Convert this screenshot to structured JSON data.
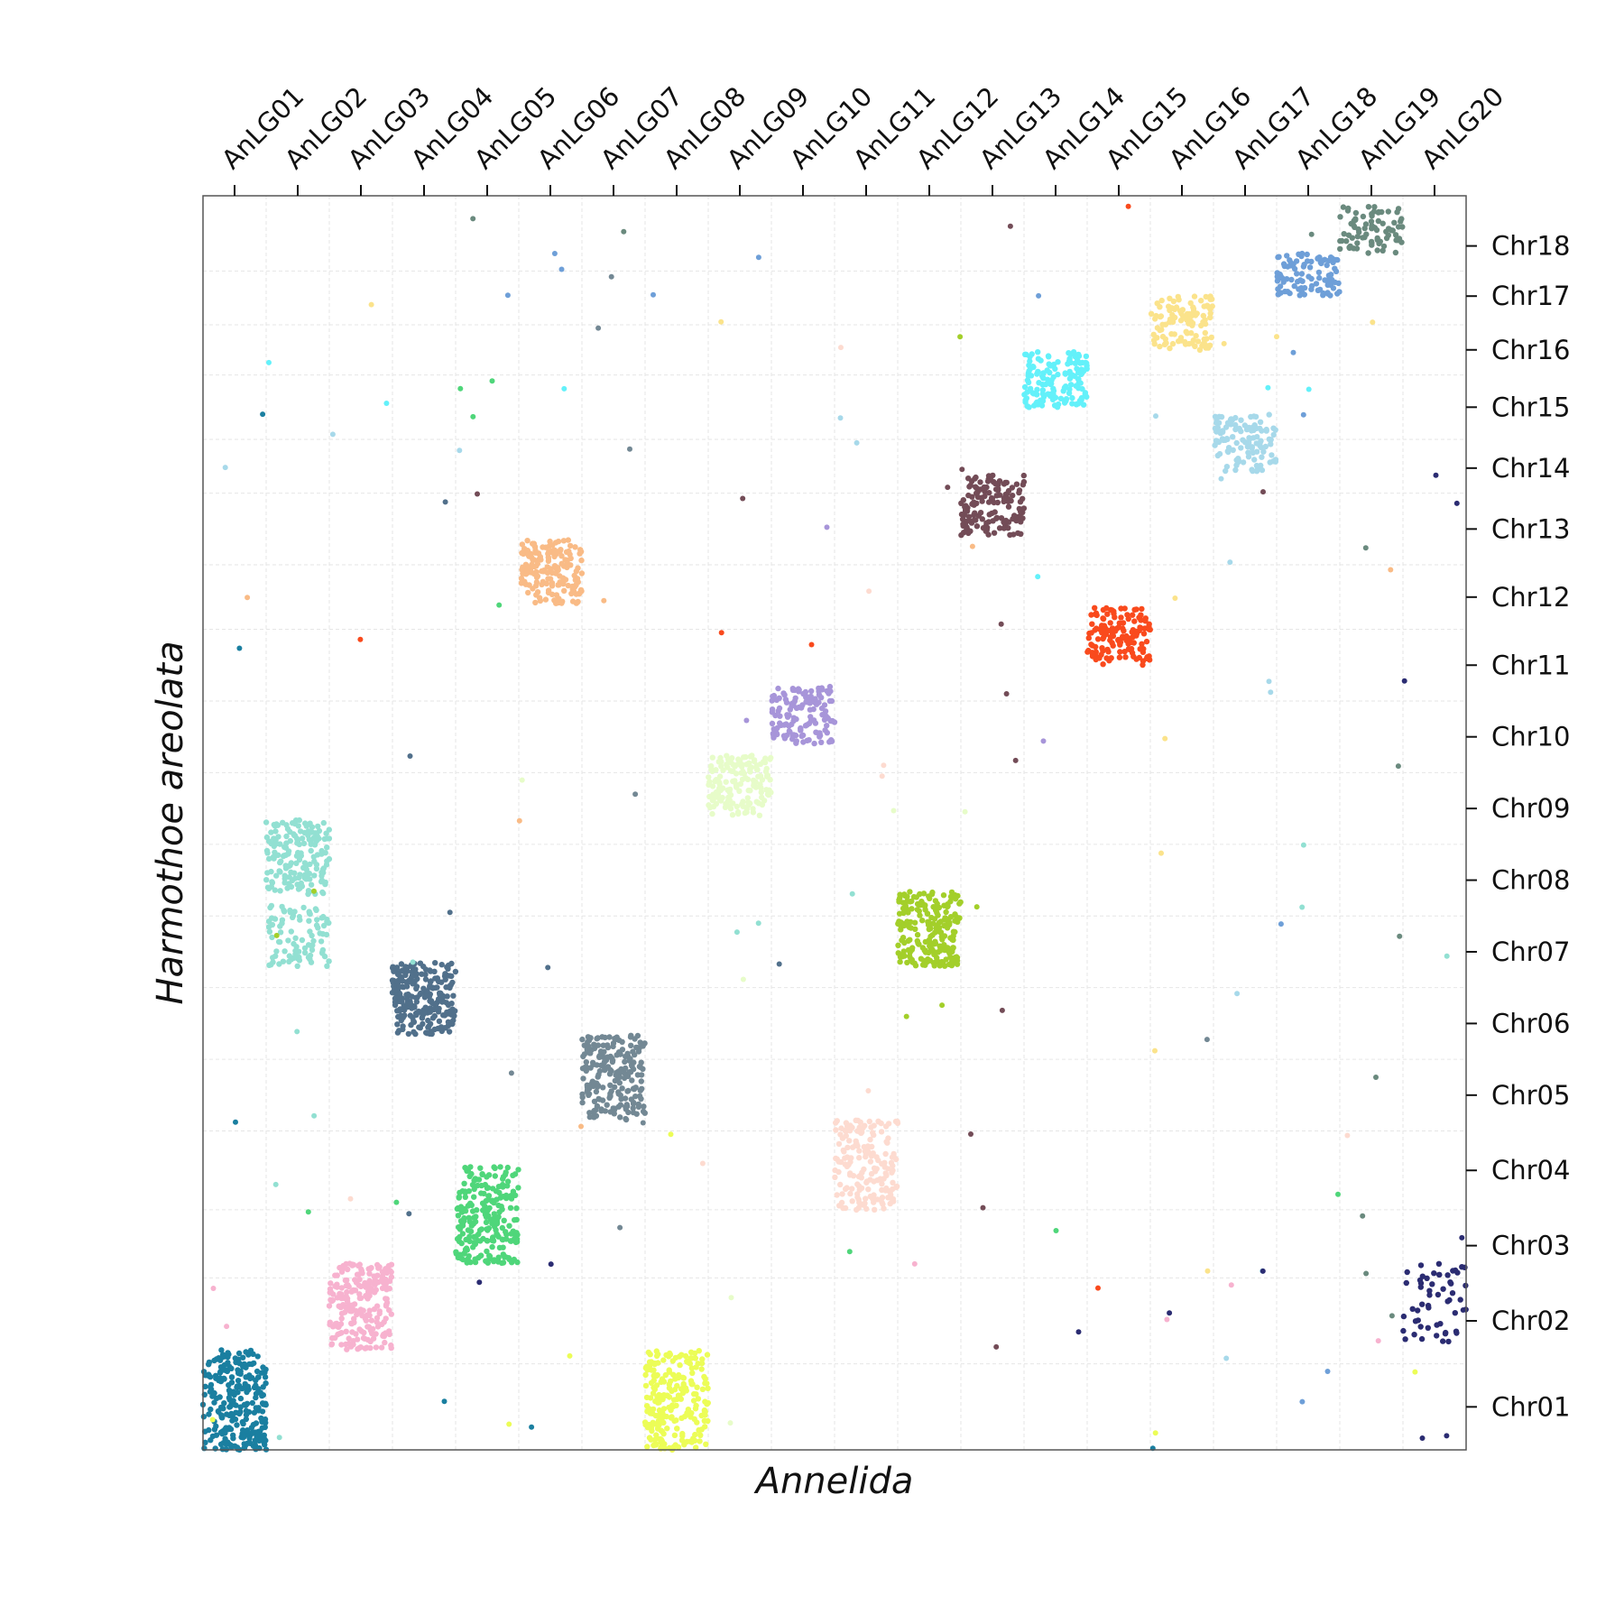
{
  "chart_data": {
    "type": "scatter",
    "xlabel": "Annelida",
    "ylabel": "Harmothoe areolata",
    "x_categories": [
      "AnLG01",
      "AnLG02",
      "AnLG03",
      "AnLG04",
      "AnLG05",
      "AnLG06",
      "AnLG07",
      "AnLG08",
      "AnLG09",
      "AnLG10",
      "AnLG11",
      "AnLG12",
      "AnLG13",
      "AnLG14",
      "AnLG15",
      "AnLG16",
      "AnLG17",
      "AnLG18",
      "AnLG19",
      "AnLG20"
    ],
    "x_ticks": [
      0.5,
      1.5,
      2.5,
      3.5,
      4.5,
      5.5,
      6.5,
      7.5,
      8.5,
      9.5,
      10.5,
      11.5,
      12.5,
      13.5,
      14.5,
      15.5,
      16.5,
      17.5,
      18.5,
      19.5
    ],
    "xlim": [
      0,
      20
    ],
    "x_axis_position": "top",
    "y_categories": [
      "Chr01",
      "Chr02",
      "Chr03",
      "Chr04",
      "Chr05",
      "Chr06",
      "Chr07",
      "Chr08",
      "Chr09",
      "Chr10",
      "Chr11",
      "Chr12",
      "Chr13",
      "Chr14",
      "Chr15",
      "Chr16",
      "Chr17",
      "Chr18"
    ],
    "y_ticks": [
      0.6,
      1.8,
      2.85,
      3.9,
      4.95,
      5.95,
      6.95,
      7.95,
      8.95,
      9.95,
      10.95,
      11.9,
      12.85,
      13.7,
      14.55,
      15.35,
      16.1,
      16.8
    ],
    "ylim": [
      0,
      17.5
    ],
    "y_axis_position": "right",
    "grid": true,
    "clusters": [
      {
        "x": [
          0,
          1
        ],
        "y": [
          0,
          1.4
        ],
        "color": "#1a7fa0",
        "n": 260
      },
      {
        "x": [
          2,
          3
        ],
        "y": [
          1.4,
          2.6
        ],
        "color": "#f7b2cf",
        "n": 220
      },
      {
        "x": [
          4,
          5
        ],
        "y": [
          2.6,
          3.95
        ],
        "color": "#4fd67a",
        "n": 230
      },
      {
        "x": [
          10,
          11
        ],
        "y": [
          3.35,
          4.6
        ],
        "color": "#fddbd0",
        "n": 180
      },
      {
        "x": [
          6,
          7
        ],
        "y": [
          4.6,
          5.8
        ],
        "color": "#738894",
        "n": 210
      },
      {
        "x": [
          3,
          4
        ],
        "y": [
          5.8,
          6.8
        ],
        "color": "#51708b",
        "n": 230
      },
      {
        "x": [
          11,
          12
        ],
        "y": [
          6.75,
          7.8
        ],
        "color": "#a3cf2a",
        "n": 220
      },
      {
        "x": [
          1,
          2
        ],
        "y": [
          6.75,
          7.6
        ],
        "color": "#92e0d2",
        "n": 90
      },
      {
        "x": [
          1,
          2
        ],
        "y": [
          7.75,
          8.8
        ],
        "color": "#92e0d2",
        "n": 170
      },
      {
        "x": [
          8,
          9
        ],
        "y": [
          8.85,
          9.7
        ],
        "color": "#e7fcc9",
        "n": 150
      },
      {
        "x": [
          9,
          10
        ],
        "y": [
          9.85,
          10.65
        ],
        "color": "#a795d9",
        "n": 140
      },
      {
        "x": [
          14,
          15
        ],
        "y": [
          10.95,
          11.75
        ],
        "color": "#f94a1d",
        "n": 140
      },
      {
        "x": [
          5,
          6
        ],
        "y": [
          11.8,
          12.7
        ],
        "color": "#f9bb86",
        "n": 170
      },
      {
        "x": [
          12,
          13
        ],
        "y": [
          12.75,
          13.6
        ],
        "color": "#734c57",
        "n": 150
      },
      {
        "x": [
          16,
          17
        ],
        "y": [
          13.65,
          14.45
        ],
        "color": "#a7d9ea",
        "n": 110
      },
      {
        "x": [
          13,
          14
        ],
        "y": [
          14.55,
          15.35
        ],
        "color": "#63f1fa",
        "n": 150
      },
      {
        "x": [
          15,
          16
        ],
        "y": [
          15.35,
          16.1
        ],
        "color": "#fbe38b",
        "n": 110
      },
      {
        "x": [
          17,
          18
        ],
        "y": [
          16.1,
          16.7
        ],
        "color": "#6e9fd8",
        "n": 100
      },
      {
        "x": [
          18,
          19
        ],
        "y": [
          16.7,
          17.35
        ],
        "color": "#6a8a7e",
        "n": 80
      },
      {
        "x": [
          19,
          20
        ],
        "y": [
          1.5,
          2.6
        ],
        "color": "#2b2c72",
        "n": 55
      },
      {
        "x": [
          7,
          8
        ],
        "y": [
          0,
          1.4
        ],
        "color": "#ecfd57",
        "n": 230
      }
    ]
  }
}
